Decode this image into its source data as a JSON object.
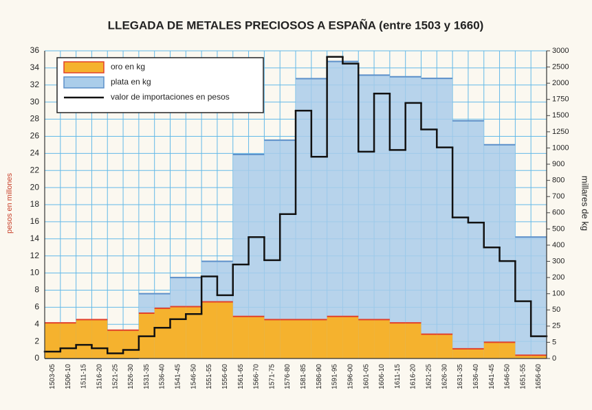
{
  "chart_data": {
    "type": "bar",
    "title": "LLEGADA DE METALES PRECIOSOS A ESPAÑA (entre 1503 y 1660)",
    "y_label": "pesos en millones",
    "y2_label": "millares de kg",
    "categories": [
      "1503-05",
      "1506-10",
      "1511-15",
      "1516-20",
      "1521-25",
      "1526-30",
      "1531-35",
      "1536-40",
      "1541-45",
      "1546-50",
      "1551-55",
      "1556-60",
      "1561-65",
      "1566-70",
      "1571-75",
      "1576-80",
      "1581-85",
      "1586-90",
      "1591-95",
      "1596-00",
      "1601-05",
      "1606-10",
      "1611-15",
      "1616-20",
      "1621-25",
      "1626-30",
      "1631-35",
      "1636-40",
      "1641-45",
      "1646-50",
      "1651-55",
      "1656-60"
    ],
    "series": [
      {
        "name": "oro en kg",
        "color": "#f5b22e",
        "edge": "#e2402a",
        "axis": "y2",
        "values": [
          30,
          30,
          35,
          35,
          20,
          20,
          45,
          55,
          60,
          60,
          75,
          75,
          40,
          40,
          35,
          35,
          35,
          35,
          40,
          40,
          35,
          35,
          30,
          30,
          15,
          15,
          3,
          3,
          5,
          5,
          1,
          1
        ]
      },
      {
        "name": "plata en kg",
        "color": "#aacdea",
        "edge": "#5b8fc9",
        "axis": "y2",
        "values": [
          0,
          0,
          0,
          0,
          0,
          0,
          100,
          100,
          200,
          200,
          300,
          300,
          960,
          960,
          1120,
          1120,
          2140,
          2140,
          2670,
          2670,
          2250,
          2250,
          2200,
          2200,
          2150,
          2150,
          1420,
          1420,
          1050,
          1050,
          450,
          450
        ]
      },
      {
        "name": "valor de importaciones en pesos",
        "color": "#111111",
        "type": "step",
        "values": [
          0.8,
          1.2,
          1.6,
          1.2,
          0.6,
          1.0,
          2.6,
          3.6,
          4.6,
          5.2,
          9.6,
          7.4,
          11,
          14.2,
          11.5,
          16.9,
          29,
          23.6,
          35.3,
          34.5,
          24.2,
          31,
          24.4,
          29.9,
          26.8,
          24.7,
          16.5,
          15.9,
          13,
          11.4,
          6.7,
          2.6
        ]
      }
    ],
    "ylim": [
      0,
      36
    ],
    "yticks": [
      0,
      2,
      4,
      6,
      8,
      10,
      12,
      14,
      16,
      18,
      20,
      22,
      24,
      26,
      28,
      30,
      32,
      34,
      36
    ],
    "y2lim": [
      0,
      3000
    ],
    "y2ticks": [
      0,
      5,
      25,
      50,
      100,
      200,
      300,
      400,
      500,
      600,
      700,
      800,
      900,
      1000,
      1250,
      1500,
      1750,
      2000,
      2500,
      3000
    ],
    "grid": true,
    "grid_color": "#62b9e8",
    "legend": "top-left"
  }
}
